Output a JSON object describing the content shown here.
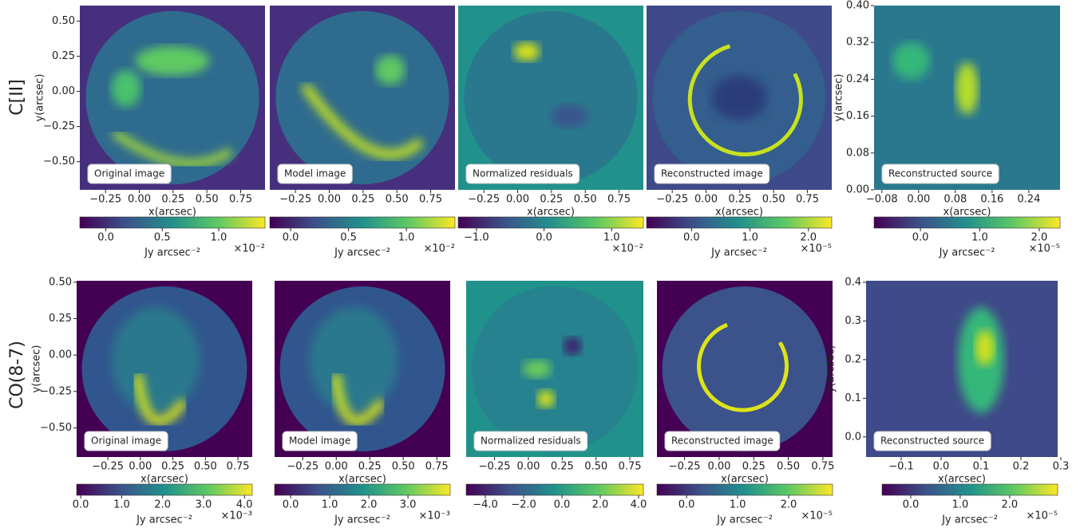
{
  "row_labels": [
    "C[II]",
    "CO(8-7)"
  ],
  "chart_data": [
    {
      "type": "image",
      "annotation": "Original image",
      "xlabel": "x(arcsec)",
      "ylabel": "y(arcsec)",
      "xlim": [
        -0.44,
        0.93
      ],
      "ylim": [
        -0.7,
        0.61
      ],
      "xticks": [
        {
          "value": -0.25,
          "label": "−0.25"
        },
        {
          "value": 0,
          "label": "0.00"
        },
        0.25,
        {
          "value": 0.5,
          "label": "0.50"
        },
        0.75
      ],
      "yticks": [
        {
          "value": -0.5,
          "label": "−0.50"
        },
        {
          "value": -0.25,
          "label": "−0.25"
        },
        {
          "value": 0,
          "label": "0.00"
        },
        0.25,
        {
          "value": 0.5,
          "label": "0.50"
        }
      ],
      "colorbar": {
        "label": "Jy arcsec⁻²",
        "offset": "×10⁻²",
        "lim": [
          -0.23,
          1.41
        ],
        "ticks": [
          {
            "value": 0,
            "label": "0.0"
          },
          0.5,
          {
            "value": 1,
            "label": "1.0"
          }
        ]
      }
    },
    {
      "type": "image",
      "annotation": "Model image",
      "xlim": [
        -0.44,
        0.93
      ],
      "xticks": [
        {
          "value": -0.25,
          "label": "−0.25"
        },
        {
          "value": 0,
          "label": "0.00"
        },
        0.25,
        {
          "value": 0.5,
          "label": "0.50"
        },
        0.75
      ],
      "colorbar": {
        "label": "Jy arcsec⁻²",
        "offset": "×10⁻²",
        "lim": [
          -0.18,
          1.42
        ],
        "ticks": [
          {
            "value": 0,
            "label": "0.0"
          },
          0.5,
          {
            "value": 1,
            "label": "1.0"
          }
        ]
      }
    },
    {
      "type": "image",
      "annotation": "Normalized residuals",
      "xlabel": "x(arcsec)",
      "xlim": [
        -0.44,
        0.93
      ],
      "xticks": [
        {
          "value": -0.25,
          "label": "−0.25"
        },
        {
          "value": 0,
          "label": "0.00"
        },
        0.25,
        {
          "value": 0.5,
          "label": "0.50"
        },
        0.75
      ],
      "colorbar": {
        "offset": "×10⁻²",
        "lim": [
          -1.27,
          1.47
        ],
        "ticks": [
          {
            "value": -1,
            "label": "−1.0"
          },
          {
            "value": 0,
            "label": "0.0"
          },
          {
            "value": 1,
            "label": "1.0"
          }
        ]
      }
    },
    {
      "type": "image",
      "annotation": "Reconstructed image",
      "xlabel": "x(arcsec)",
      "xlim": [
        -0.44,
        0.93
      ],
      "xticks": [
        {
          "value": -0.25,
          "label": "−0.25"
        },
        {
          "value": 0,
          "label": "0.00"
        },
        0.25,
        {
          "value": 0.5,
          "label": "0.50"
        },
        0.75
      ],
      "colorbar": {
        "label": "Jy arcsec⁻²",
        "offset": "×10⁻⁵",
        "lim": [
          -0.77,
          2.4
        ],
        "ticks": [
          {
            "value": 0,
            "label": "0.0"
          },
          {
            "value": 1,
            "label": "1.0"
          },
          {
            "value": 2,
            "label": "2.0"
          }
        ]
      }
    },
    {
      "type": "image",
      "annotation": "Reconstructed source",
      "xlabel": "x(arcsec)",
      "ylabel": "y(arcsec)",
      "xlim": [
        -0.097,
        0.308
      ],
      "ylim": [
        0,
        0.4
      ],
      "xticks": [
        {
          "value": -0.08,
          "label": "−0.08"
        },
        {
          "value": 0,
          "label": "0.00"
        },
        0.08,
        0.16,
        0.24
      ],
      "yticks": [
        {
          "value": 0,
          "label": "0.00"
        },
        0.08,
        0.16,
        0.24,
        0.32,
        {
          "value": 0.4,
          "label": "0.40"
        }
      ],
      "colorbar": {
        "label": "Jy arcsec⁻²",
        "offset": "×10⁻⁵",
        "lim": [
          -0.78,
          2.35
        ],
        "ticks": [
          {
            "value": 0,
            "label": "0.0"
          },
          {
            "value": 1,
            "label": "1.0"
          },
          {
            "value": 2,
            "label": "2.0"
          }
        ]
      }
    },
    {
      "type": "image",
      "annotation": "Original image",
      "xlabel": "x(arcsec)",
      "ylabel": "y(arcsec)",
      "xlim": [
        -0.49,
        0.86
      ],
      "ylim": [
        -0.7,
        0.51
      ],
      "xticks": [
        {
          "value": -0.25,
          "label": "−0.25"
        },
        {
          "value": 0,
          "label": "0.00"
        },
        0.25,
        {
          "value": 0.5,
          "label": "0.50"
        },
        0.75
      ],
      "yticks": [
        {
          "value": -0.5,
          "label": "−0.50"
        },
        {
          "value": -0.25,
          "label": "−0.25"
        },
        {
          "value": 0,
          "label": "0.00"
        },
        0.25,
        {
          "value": 0.5,
          "label": "0.50"
        }
      ],
      "colorbar": {
        "label": "Jy arcsec⁻²",
        "offset": "×10⁻³",
        "lim": [
          -0.1,
          4.19
        ],
        "ticks": [
          {
            "value": 0,
            "label": "0.0"
          },
          {
            "value": 1,
            "label": "1.0"
          },
          {
            "value": 2,
            "label": "2.0"
          },
          {
            "value": 3,
            "label": "3.0"
          },
          {
            "value": 4,
            "label": "4.0"
          }
        ]
      }
    },
    {
      "type": "image",
      "annotation": "Model image",
      "xlabel": "x(arcsec)",
      "xlim": [
        -0.46,
        0.85
      ],
      "xticks": [
        {
          "value": -0.25,
          "label": "−0.25"
        },
        {
          "value": 0,
          "label": "0.00"
        },
        0.25,
        {
          "value": 0.5,
          "label": "0.50"
        },
        0.75
      ],
      "colorbar": {
        "label": "Jy arcsec⁻²",
        "offset": "×10⁻³",
        "lim": [
          -0.41,
          4.08
        ],
        "ticks": [
          {
            "value": 0,
            "label": "0.0"
          },
          {
            "value": 1,
            "label": "1.0"
          },
          {
            "value": 2,
            "label": "2.0"
          },
          {
            "value": 3,
            "label": "3.0"
          }
        ]
      }
    },
    {
      "type": "image",
      "annotation": "Normalized residuals",
      "xlim": [
        -0.46,
        0.85
      ],
      "xticks": [
        {
          "value": -0.25,
          "label": "−0.25"
        },
        {
          "value": 0,
          "label": "0.00"
        },
        0.25,
        {
          "value": 0.5,
          "label": "0.50"
        },
        0.75
      ],
      "colorbar": {
        "lim": [
          -5,
          4.25
        ],
        "ticks": [
          {
            "value": -4,
            "label": "−4.0"
          },
          {
            "value": -2,
            "label": "−2.0"
          },
          {
            "value": 0,
            "label": "0.0"
          },
          {
            "value": 2,
            "label": "2.0"
          },
          {
            "value": 4,
            "label": "4.0"
          }
        ]
      }
    },
    {
      "type": "image",
      "annotation": "Reconstructed image",
      "xlabel": "x(arcsec)",
      "xlim": [
        -0.45,
        0.82
      ],
      "xticks": [
        {
          "value": -0.25,
          "label": "−0.25"
        },
        {
          "value": 0,
          "label": "0.00"
        },
        0.25,
        {
          "value": 0.5,
          "label": "0.50"
        },
        0.75
      ],
      "colorbar": {
        "label": "Jy arcsec⁻²",
        "offset": "×10⁻⁵",
        "lim": [
          -0.58,
          2.86
        ],
        "ticks": [
          {
            "value": 0,
            "label": "0.0"
          },
          {
            "value": 1,
            "label": "1.0"
          },
          {
            "value": 2,
            "label": "2.0"
          }
        ]
      }
    },
    {
      "type": "image",
      "annotation": "Reconstructed source",
      "xlabel": "x(arcsec)",
      "ylabel": "y(arcsec)",
      "xlim": [
        -0.188,
        0.292
      ],
      "ylim": [
        -0.052,
        0.404
      ],
      "xticks": [
        {
          "value": -0.1,
          "label": "−0.1"
        },
        {
          "value": 0,
          "label": "0.0"
        },
        0.1,
        0.2,
        0.3
      ],
      "yticks": [
        {
          "value": 0,
          "label": "0.0"
        },
        0.1,
        0.2,
        0.3,
        0.4
      ],
      "colorbar": {
        "label": "Jy arcsec⁻²",
        "offset": "×10⁻⁵",
        "lim": [
          -0.58,
          2.97
        ],
        "ticks": [
          {
            "value": 0,
            "label": "0.0"
          },
          {
            "value": 1,
            "label": "1.0"
          },
          {
            "value": 2,
            "label": "2.0"
          }
        ]
      }
    }
  ]
}
